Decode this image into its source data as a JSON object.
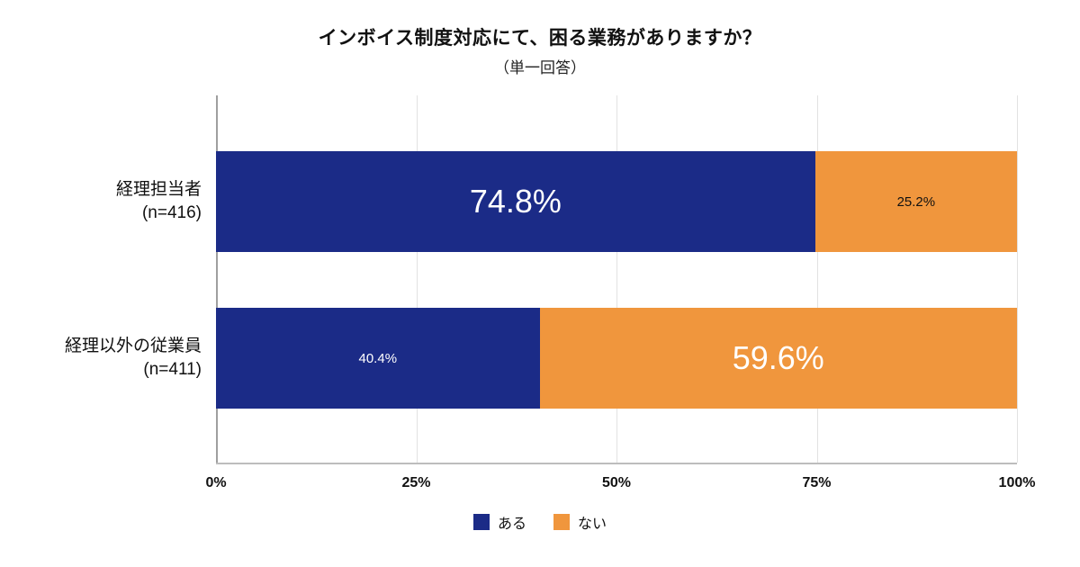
{
  "chart_data": {
    "type": "bar",
    "orientation": "horizontal",
    "stacked": true,
    "title": "インボイス制度対応にて、困る業務がありますか？",
    "subtitle": "（単一回答）",
    "xlim": [
      0,
      100
    ],
    "grid": true,
    "legend_position": "bottom",
    "x_ticks": [
      {
        "label": "0%",
        "position": 0
      },
      {
        "label": "25%",
        "position": 25
      },
      {
        "label": "50%",
        "position": 50
      },
      {
        "label": "75%",
        "position": 75
      },
      {
        "label": "100%",
        "position": 100
      }
    ],
    "series": [
      {
        "name": "ある",
        "color": "#1b2b87",
        "values": [
          74.8,
          40.4
        ]
      },
      {
        "name": "ない",
        "color": "#f0963d",
        "values": [
          25.2,
          59.6
        ]
      }
    ],
    "legend": [
      {
        "name": "ある",
        "color": "#1b2b87"
      },
      {
        "name": "ない",
        "color": "#f0963d"
      }
    ],
    "rows": [
      {
        "category_lines": [
          "経理担当者",
          "(n=416)"
        ],
        "segments": [
          {
            "series": "ある",
            "value": 74.8,
            "label": "74.8%",
            "color": "#1b2b87",
            "label_color": "#ffffff",
            "label_size": "large"
          },
          {
            "series": "ない",
            "value": 25.2,
            "label": "25.2%",
            "color": "#f0963d",
            "label_color": "#111111",
            "label_size": "small"
          }
        ]
      },
      {
        "category_lines": [
          "経理以外の従業員",
          "(n=411)"
        ],
        "segments": [
          {
            "series": "ある",
            "value": 40.4,
            "label": "40.4%",
            "color": "#1b2b87",
            "label_color": "#ffffff",
            "label_size": "small"
          },
          {
            "series": "ない",
            "value": 59.6,
            "label": "59.6%",
            "color": "#f0963d",
            "label_color": "#ffffff",
            "label_size": "large"
          }
        ]
      }
    ]
  }
}
